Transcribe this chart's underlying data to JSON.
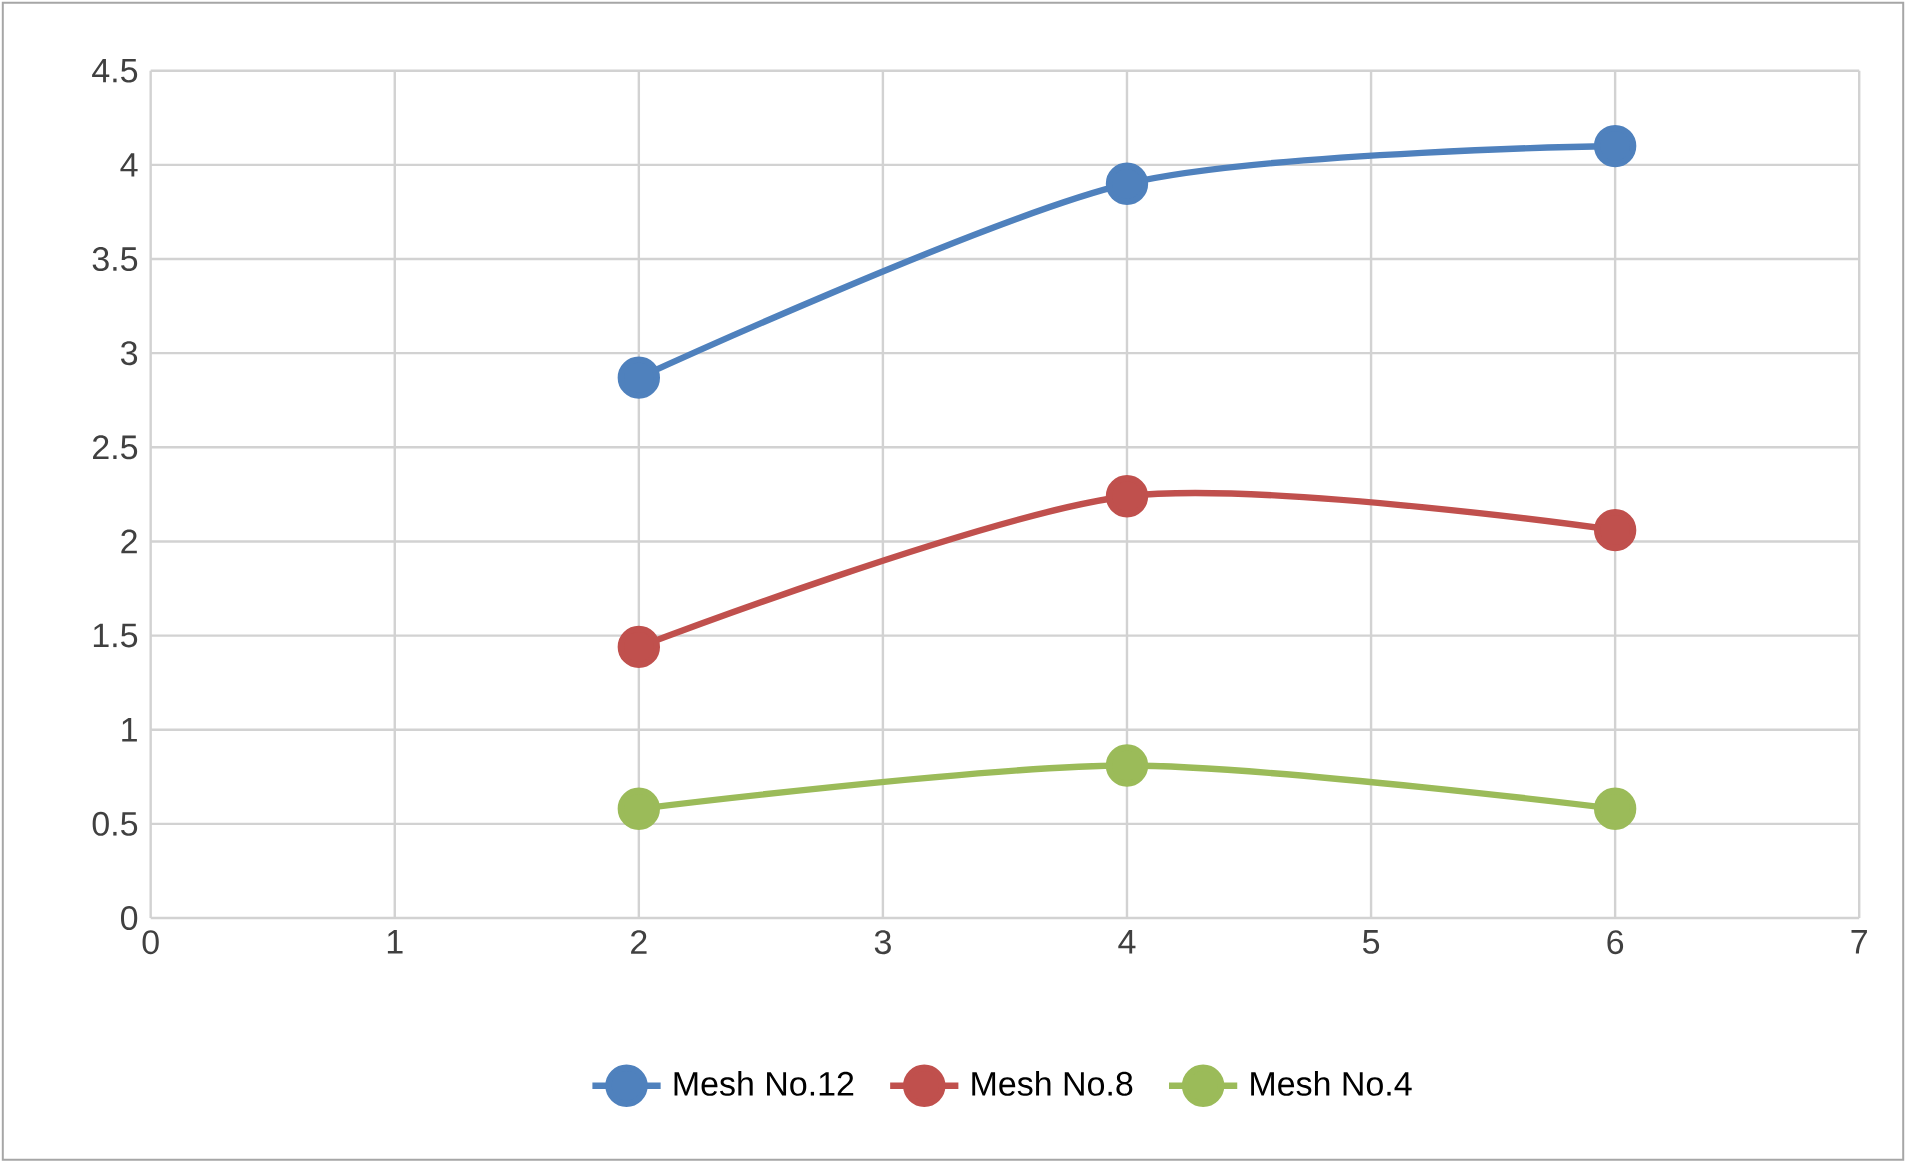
{
  "chart_data": {
    "type": "line",
    "x": [
      2,
      4,
      6
    ],
    "series": [
      {
        "name": "Mesh No.12",
        "color": "#4f81bd",
        "values": [
          2.87,
          3.9,
          4.1
        ]
      },
      {
        "name": "Mesh No.8",
        "color": "#c0504d",
        "values": [
          1.44,
          2.24,
          2.06
        ]
      },
      {
        "name": "Mesh No.4",
        "color": "#9bbb59",
        "values": [
          0.58,
          0.81,
          0.58
        ]
      }
    ],
    "xlim": [
      0,
      7
    ],
    "xticks": [
      0,
      1,
      2,
      3,
      4,
      5,
      6,
      7
    ],
    "ylim": [
      0,
      4.5
    ],
    "yticks": [
      0,
      0.5,
      1,
      1.5,
      2,
      2.5,
      3,
      3.5,
      4,
      4.5
    ],
    "grid": true,
    "legend": "bottom",
    "marker": "circle",
    "line_style": "solid"
  }
}
